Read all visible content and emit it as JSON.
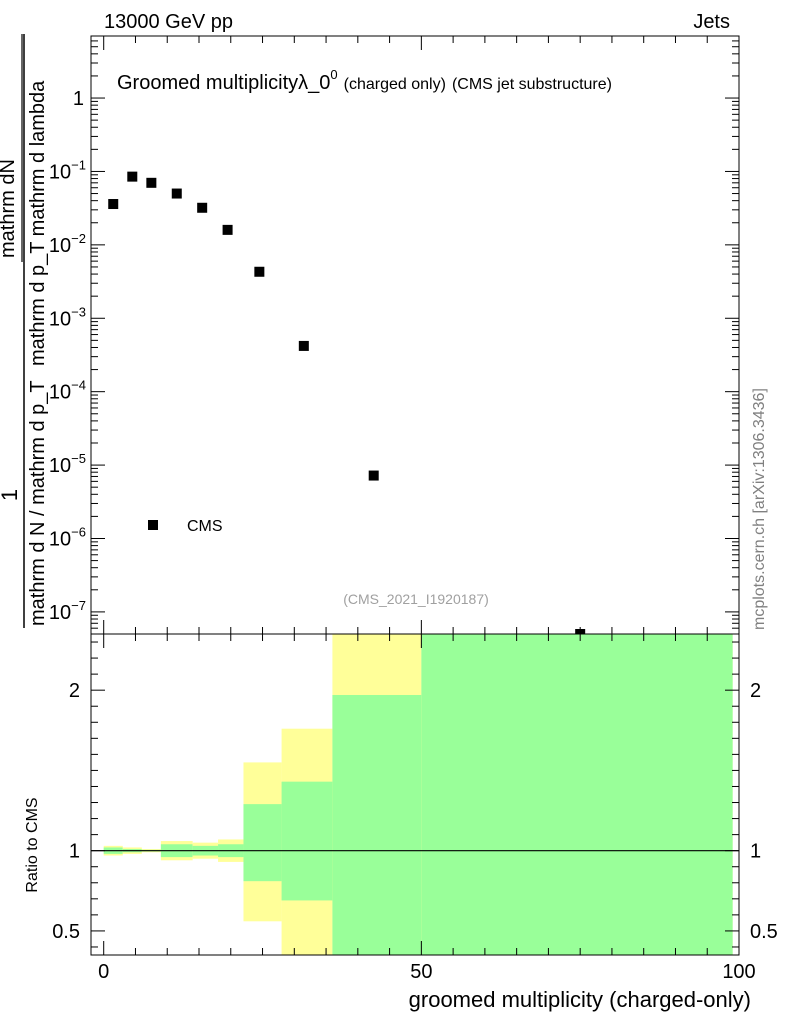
{
  "header": {
    "left": "13000 GeV pp",
    "right": "Jets"
  },
  "plot_title": {
    "main": "Groomed multiplicityλ_0",
    "superscript": "0",
    "sub1": "(charged only)",
    "sub2": "(CMS jet substructure)"
  },
  "side_credit": "mcplots.cern.ch [arXiv:1306.3436]",
  "analysis_tag": "(CMS_2021_I1920187)",
  "legend": {
    "label": "CMS"
  },
  "ylabel_top": {
    "one": "1",
    "numer": "mathrm d N / mathrm d p_T mathrm d lambda",
    "numer_parts": [
      "mathrm d",
      "N"
    ],
    "upper_numer": "mathrm dN",
    "upper_denom": "mathrm d p_T mathrm d lambda",
    "lower_denom": "mathrm d N / mathrm d p_T"
  },
  "ylabel_bottom": "Ratio to CMS",
  "xlabel": "groomed multiplicity (charged-only)",
  "chart_data": [
    {
      "type": "scatter",
      "panel": "main",
      "yscale": "log",
      "xlim": [
        -2,
        100
      ],
      "ylim": [
        5e-08,
        7
      ],
      "yticks": [
        {
          "value": 1,
          "label": "1"
        },
        {
          "value": 0.1,
          "label": "10",
          "exp": "−1"
        },
        {
          "value": 0.01,
          "label": "10",
          "exp": "−2"
        },
        {
          "value": 0.001,
          "label": "10",
          "exp": "−3"
        },
        {
          "value": 0.0001,
          "label": "10",
          "exp": "−4"
        },
        {
          "value": 1e-05,
          "label": "10",
          "exp": "−5"
        },
        {
          "value": 1e-06,
          "label": "10",
          "exp": "−6"
        },
        {
          "value": 1e-07,
          "label": "10",
          "exp": "−7"
        }
      ],
      "series": [
        {
          "name": "CMS",
          "x": [
            1.5,
            4.5,
            7.5,
            11.5,
            15.5,
            19.5,
            24.5,
            31.5,
            42.5,
            75
          ],
          "y": [
            0.036,
            0.085,
            0.07,
            0.05,
            0.032,
            0.016,
            0.0043,
            0.00042,
            7.2e-06,
            5e-08
          ]
        }
      ]
    },
    {
      "type": "area",
      "panel": "ratio",
      "xlim": [
        -2,
        100
      ],
      "ylim": [
        0.35,
        2.35
      ],
      "xticks": [
        0,
        50,
        100
      ],
      "yticks": [
        0.5,
        1,
        2
      ],
      "reference_line": 1,
      "bands": {
        "x_edges": [
          0,
          3,
          6,
          9,
          14,
          18,
          22,
          28,
          36,
          50,
          99
        ],
        "yellow_lo": [
          0.97,
          0.98,
          0.99,
          0.94,
          0.95,
          0.93,
          0.56,
          0.35,
          0.35,
          0.35
        ],
        "yellow_hi": [
          1.03,
          1.02,
          1.01,
          1.06,
          1.05,
          1.07,
          1.55,
          1.76,
          2.4,
          2.4
        ],
        "green_lo": [
          0.98,
          0.99,
          0.995,
          0.96,
          0.97,
          0.96,
          0.81,
          0.69,
          0.35,
          0.35
        ],
        "green_hi": [
          1.02,
          1.01,
          1.005,
          1.04,
          1.03,
          1.04,
          1.29,
          1.43,
          1.97,
          2.4
        ]
      },
      "colors": {
        "yellow": "#ffff99",
        "green": "#99ff99"
      }
    }
  ]
}
